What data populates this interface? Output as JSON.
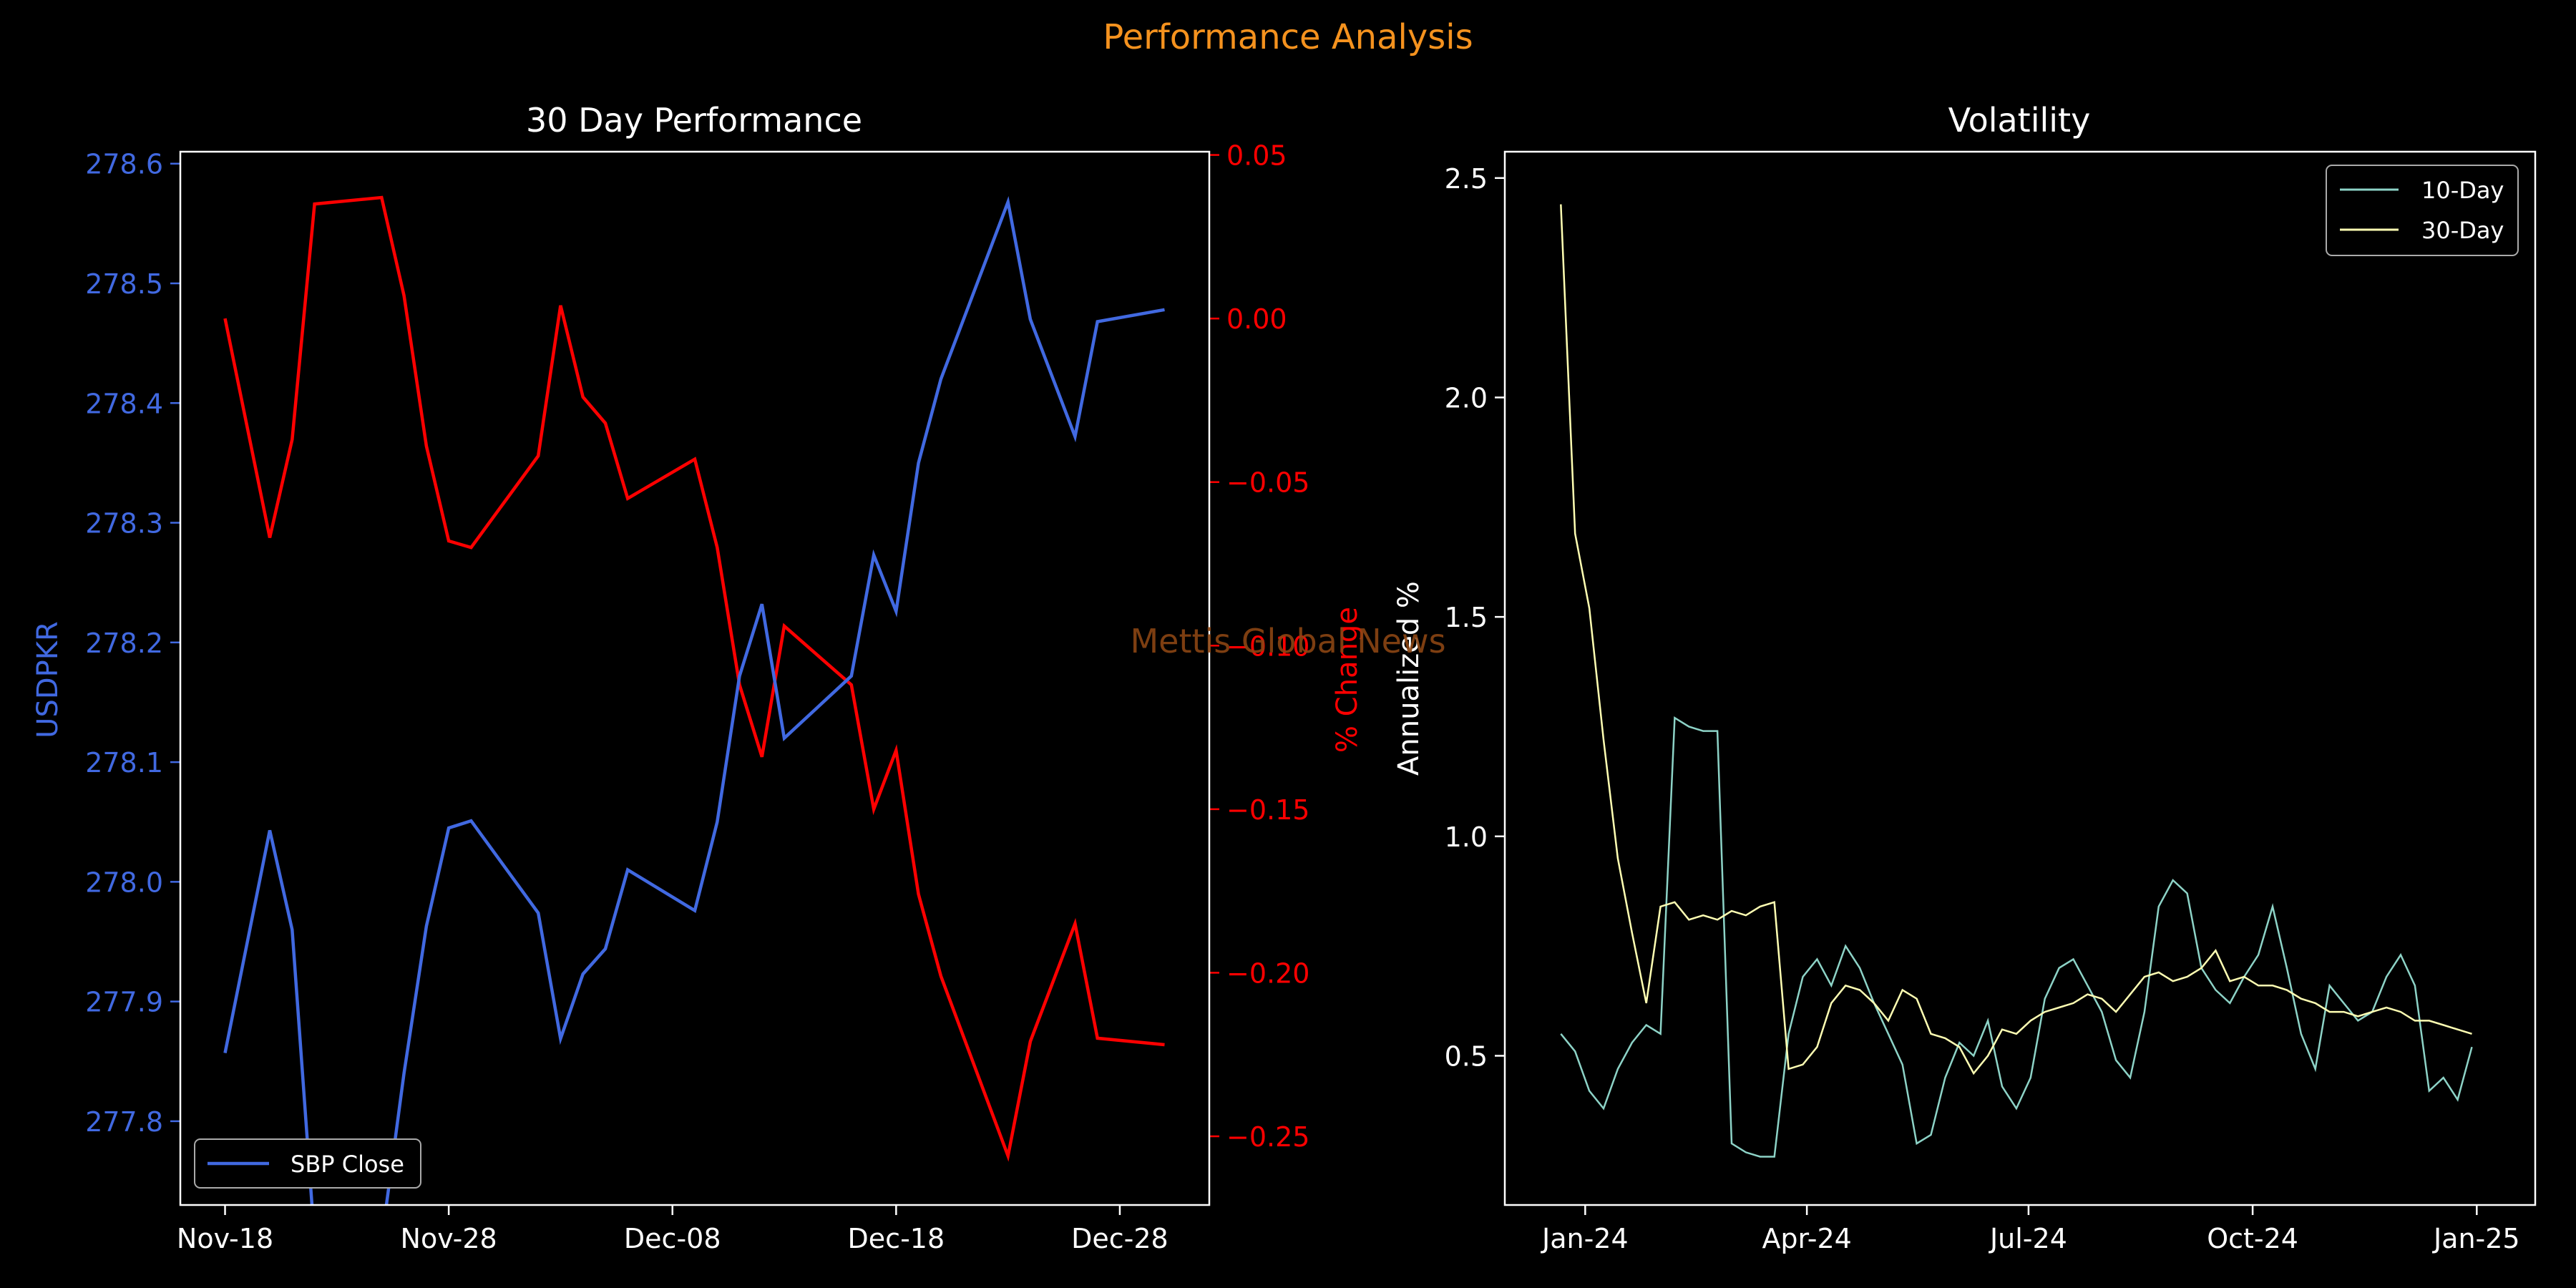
{
  "figure": {
    "suptitle": "Performance Analysis",
    "watermark": "Mettis Global News"
  },
  "colors": {
    "background": "#000000",
    "suptitle": "#f5921e",
    "price": "#4169e1",
    "pct": "#ff0000",
    "vol10": "#8dd3c7",
    "vol30": "#ffffb3",
    "text": "#ffffff",
    "watermark": "#8b4513"
  },
  "chart_data": [
    {
      "type": "line",
      "title": "30 Day Performance",
      "ylabel": "USDPKR",
      "ylabel_right": "% Change",
      "x": [
        "2024-11-18",
        "2024-11-20",
        "2024-11-21",
        "2024-11-22",
        "2024-11-25",
        "2024-11-26",
        "2024-11-27",
        "2024-11-28",
        "2024-11-29",
        "2024-12-02",
        "2024-12-03",
        "2024-12-04",
        "2024-12-05",
        "2024-12-06",
        "2024-12-09",
        "2024-12-10",
        "2024-12-11",
        "2024-12-12",
        "2024-12-13",
        "2024-12-16",
        "2024-12-17",
        "2024-12-18",
        "2024-12-19",
        "2024-12-20",
        "2024-12-23",
        "2024-12-24",
        "2024-12-26",
        "2024-12-27",
        "2024-12-30"
      ],
      "series": [
        {
          "name": "SBP Close",
          "axis": "left",
          "values": [
            277.857,
            278.043,
            277.96,
            277.7,
            277.7,
            277.84,
            277.963,
            278.045,
            278.051,
            277.974,
            277.869,
            277.923,
            277.944,
            278.01,
            277.976,
            278.05,
            278.172,
            278.232,
            278.12,
            278.172,
            278.273,
            278.226,
            278.35,
            278.42,
            278.568,
            278.47,
            278.372,
            278.468,
            278.478
          ]
        },
        {
          "axis": "right",
          "values": [
            0.0,
            -0.067,
            -0.037,
            0.035,
            0.037,
            0.007,
            -0.039,
            -0.068,
            -0.07,
            -0.042,
            0.004,
            -0.024,
            -0.032,
            -0.055,
            -0.043,
            -0.07,
            -0.112,
            -0.134,
            -0.094,
            -0.112,
            -0.15,
            -0.132,
            -0.176,
            -0.201,
            -0.256,
            -0.221,
            -0.185,
            -0.22,
            -0.222
          ]
        }
      ],
      "xticks": [
        "Nov-18",
        "Nov-28",
        "Dec-08",
        "Dec-18",
        "Dec-28"
      ],
      "xlim": [
        "2024-11-16",
        "2025-01-01"
      ],
      "ylim": [
        277.73,
        278.61
      ],
      "yticks": [
        "277.8",
        "277.9",
        "278.0",
        "278.1",
        "278.2",
        "278.3",
        "278.4",
        "278.5",
        "278.6"
      ],
      "ylim_right": [
        -0.271,
        0.051
      ],
      "yticks_right": [
        "0.05",
        "0.00",
        "−0.05",
        "−0.10",
        "−0.15",
        "−0.20",
        "−0.25"
      ],
      "legend": "lower left"
    },
    {
      "type": "line",
      "title": "Volatility",
      "ylabel": "Annualized %",
      "x_start": "2023-12-22",
      "x_end": "2024-12-30",
      "series": [
        {
          "name": "10-Day",
          "values": [
            0.55,
            0.51,
            0.42,
            0.38,
            0.47,
            0.53,
            0.57,
            0.55,
            1.27,
            1.25,
            1.24,
            1.24,
            0.3,
            0.28,
            0.27,
            0.27,
            0.55,
            0.68,
            0.72,
            0.66,
            0.75,
            0.7,
            0.62,
            0.55,
            0.48,
            0.3,
            0.32,
            0.45,
            0.53,
            0.5,
            0.58,
            0.43,
            0.38,
            0.45,
            0.63,
            0.7,
            0.72,
            0.66,
            0.6,
            0.49,
            0.45,
            0.6,
            0.84,
            0.9,
            0.87,
            0.7,
            0.65,
            0.62,
            0.68,
            0.73,
            0.84,
            0.7,
            0.55,
            0.47,
            0.66,
            0.62,
            0.58,
            0.6,
            0.68,
            0.73,
            0.66,
            0.42,
            0.45,
            0.4,
            0.52
          ]
        },
        {
          "name": "30-Day",
          "values": [
            2.44,
            1.69,
            1.52,
            1.22,
            0.95,
            0.78,
            0.62,
            0.84,
            0.85,
            0.81,
            0.82,
            0.81,
            0.83,
            0.82,
            0.84,
            0.85,
            0.47,
            0.48,
            0.52,
            0.62,
            0.66,
            0.65,
            0.62,
            0.58,
            0.65,
            0.63,
            0.55,
            0.54,
            0.52,
            0.46,
            0.5,
            0.56,
            0.55,
            0.58,
            0.6,
            0.61,
            0.62,
            0.64,
            0.63,
            0.6,
            0.64,
            0.68,
            0.69,
            0.67,
            0.68,
            0.7,
            0.74,
            0.67,
            0.68,
            0.66,
            0.66,
            0.65,
            0.63,
            0.62,
            0.6,
            0.6,
            0.59,
            0.6,
            0.61,
            0.6,
            0.58,
            0.58,
            0.57,
            0.56,
            0.55
          ]
        }
      ],
      "xticks": [
        "Jan-24",
        "Apr-24",
        "Jul-24",
        "Oct-24",
        "Jan-25"
      ],
      "xlim": [
        "2023-11-29",
        "2025-01-25"
      ],
      "ylim": [
        0.16,
        2.56
      ],
      "yticks": [
        "0.5",
        "1.0",
        "1.5",
        "2.0",
        "2.5"
      ],
      "legend": "upper right"
    }
  ]
}
